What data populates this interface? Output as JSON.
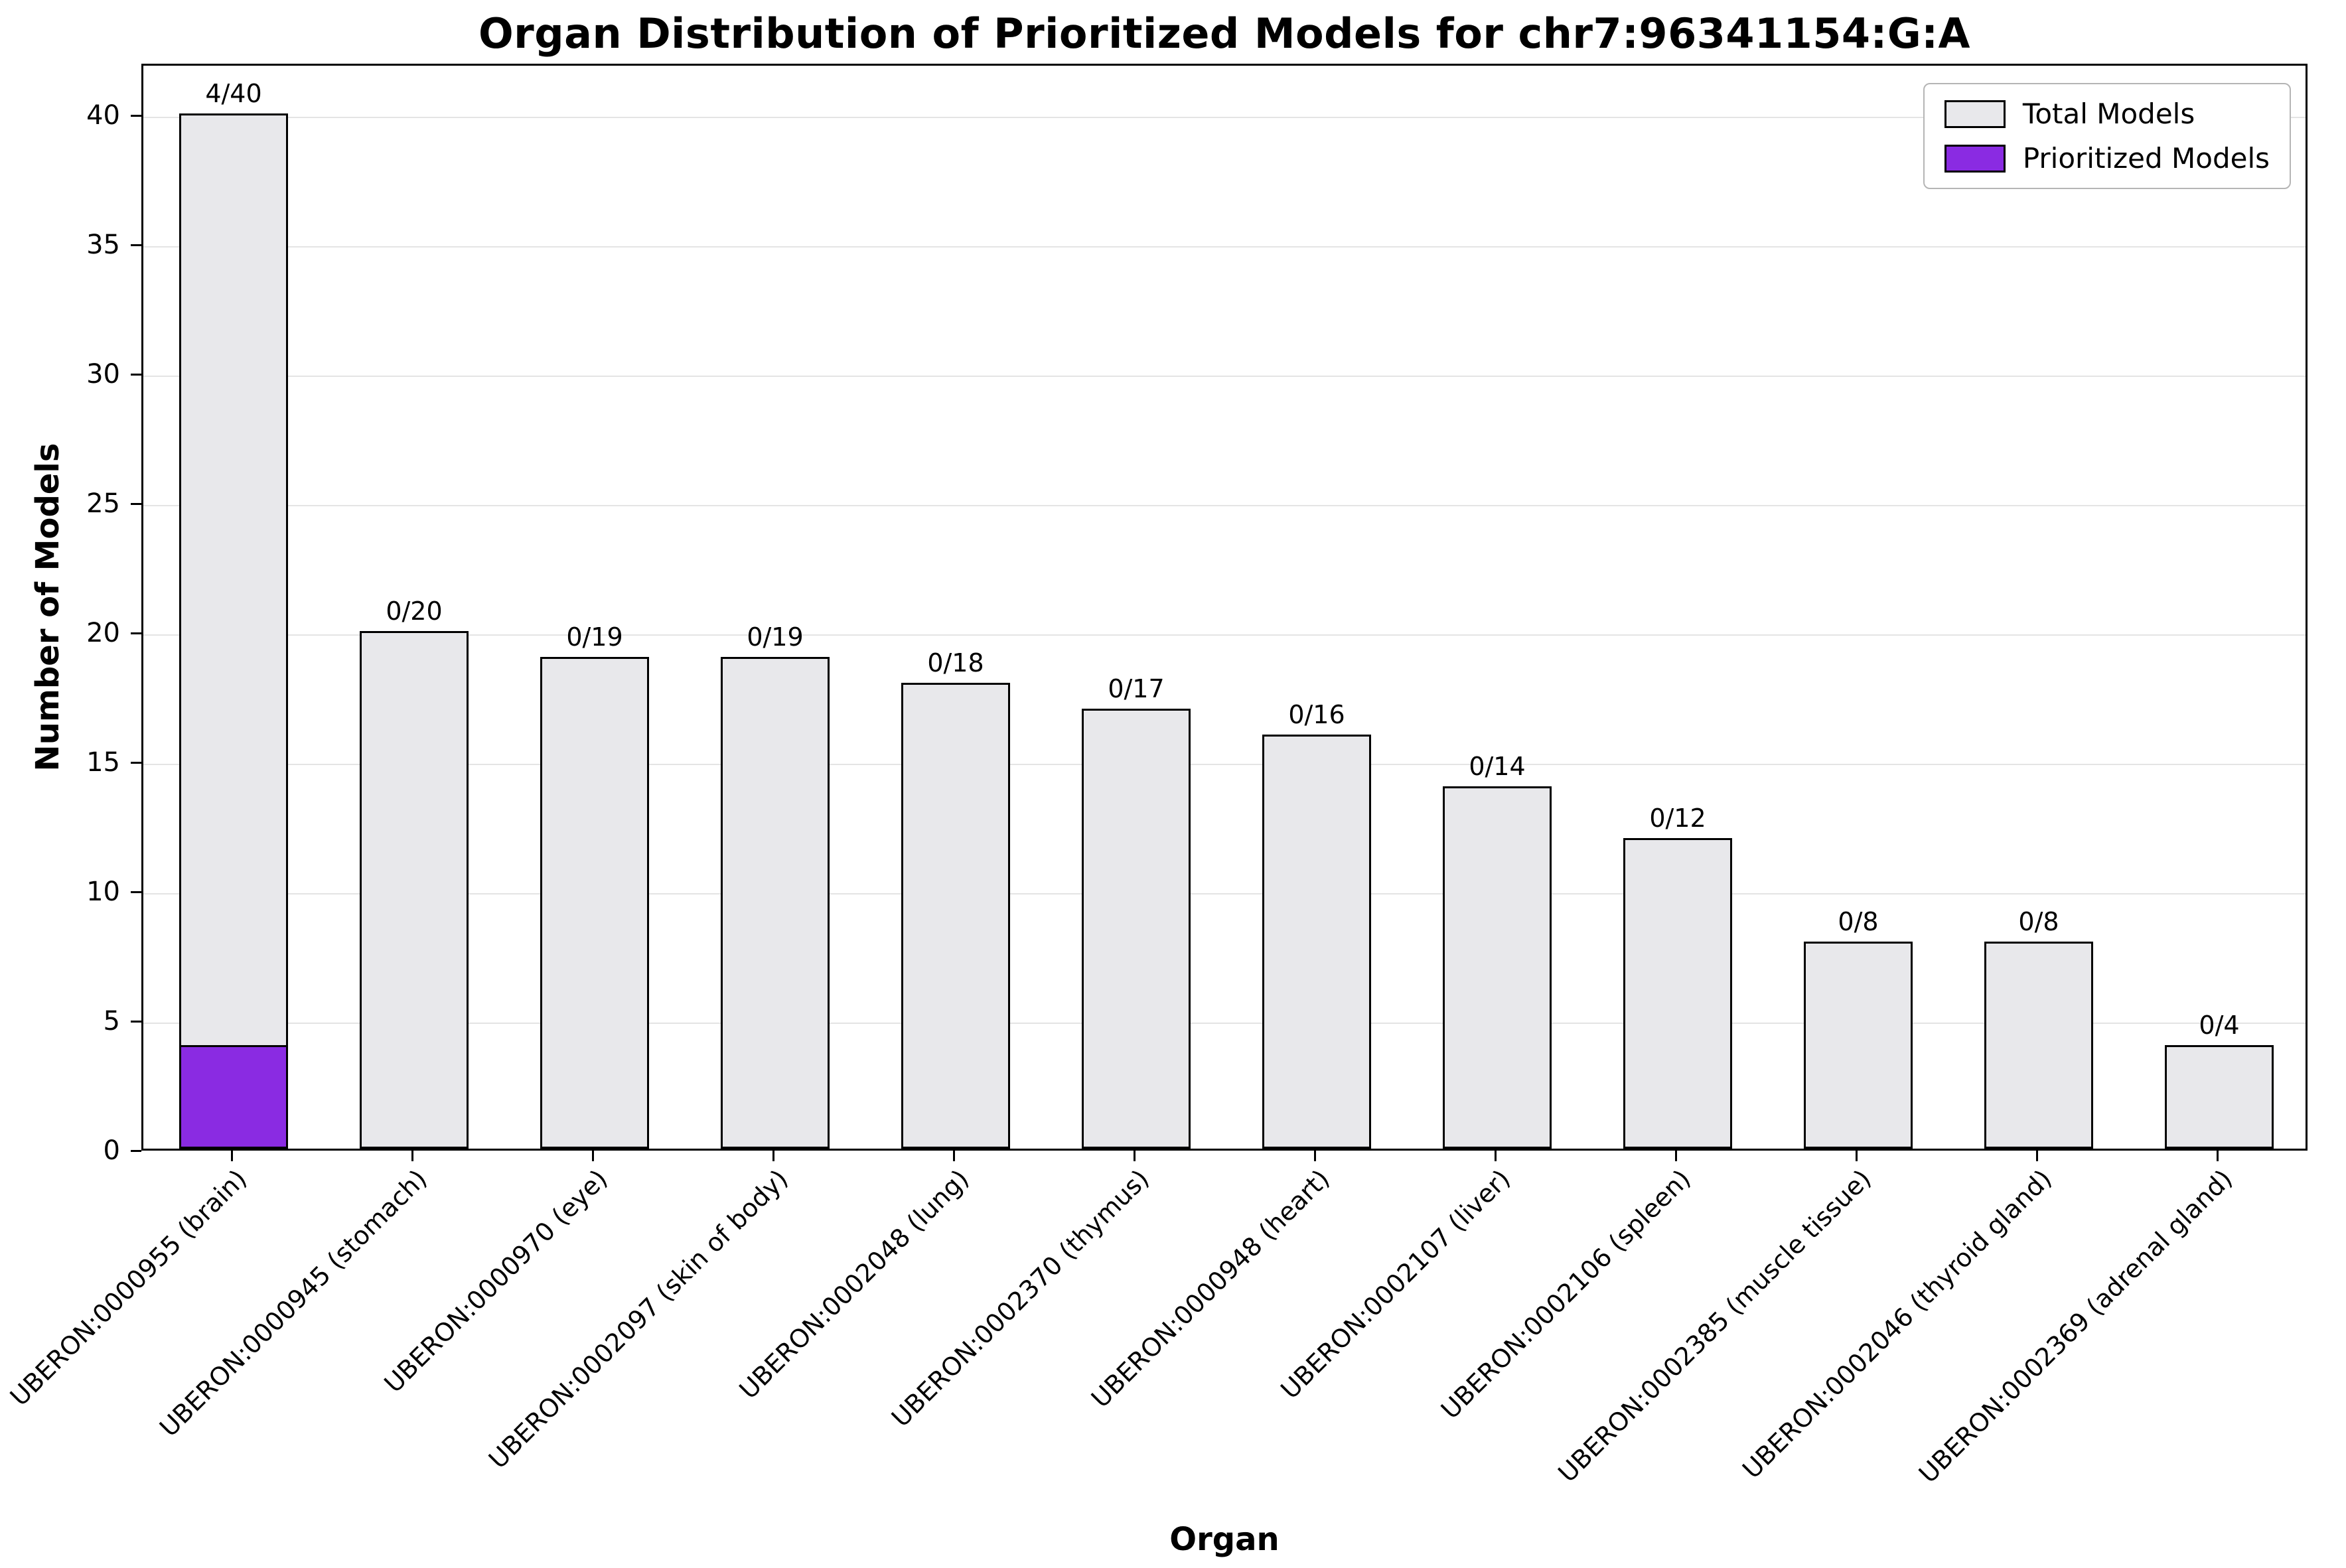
{
  "chart_data": {
    "type": "bar",
    "title": "Organ Distribution of Prioritized Models for chr7:96341154:G:A",
    "xlabel": "Organ",
    "ylabel": "Number of Models",
    "ylim": [
      0,
      42
    ],
    "yticks": [
      0,
      5,
      10,
      15,
      20,
      25,
      30,
      35,
      40
    ],
    "grid": true,
    "legend_position": "upper right",
    "categories": [
      "UBERON:0000955 (brain)",
      "UBERON:0000945 (stomach)",
      "UBERON:0000970 (eye)",
      "UBERON:0002097 (skin of body)",
      "UBERON:0002048 (lung)",
      "UBERON:0002370 (thymus)",
      "UBERON:0000948 (heart)",
      "UBERON:0002107 (liver)",
      "UBERON:0002106 (spleen)",
      "UBERON:0002385 (muscle tissue)",
      "UBERON:0002046 (thyroid gland)",
      "UBERON:0002369 (adrenal gland)"
    ],
    "series": [
      {
        "name": "Total Models",
        "color": "#e8e8eb",
        "edge_color": "#000000",
        "values": [
          40,
          20,
          19,
          19,
          18,
          17,
          16,
          14,
          12,
          8,
          8,
          4
        ]
      },
      {
        "name": "Prioritized Models",
        "color": "#8a2be2",
        "edge_color": "#000000",
        "values": [
          4,
          0,
          0,
          0,
          0,
          0,
          0,
          0,
          0,
          0,
          0,
          0
        ]
      }
    ],
    "bar_labels": [
      "4/40",
      "0/20",
      "0/19",
      "0/19",
      "0/18",
      "0/17",
      "0/16",
      "0/14",
      "0/12",
      "0/8",
      "0/8",
      "0/4"
    ]
  }
}
